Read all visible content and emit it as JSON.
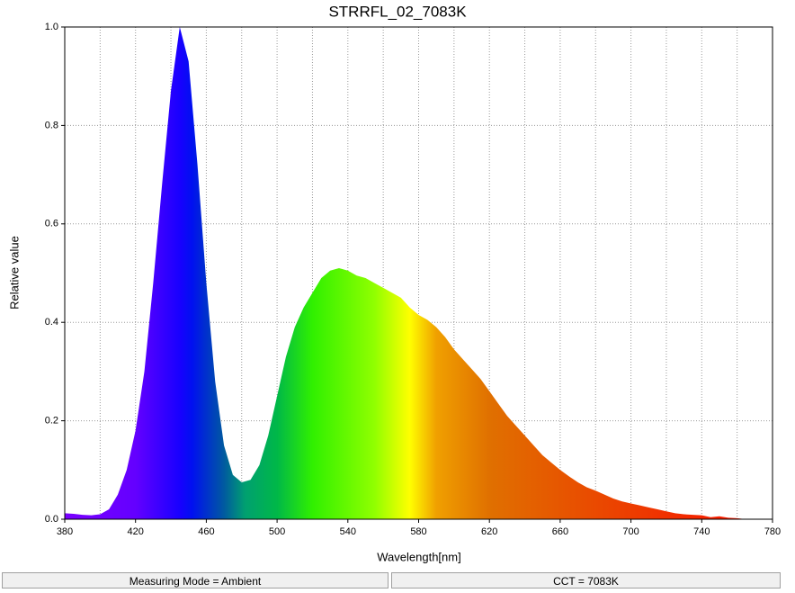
{
  "chart_data": {
    "type": "area",
    "title": "STRRFL_02_7083K",
    "x_label": "Wavelength[nm]",
    "y_label": "Relative value",
    "x": [
      380,
      385,
      390,
      395,
      400,
      405,
      410,
      415,
      420,
      425,
      430,
      435,
      440,
      445,
      450,
      455,
      460,
      465,
      470,
      475,
      480,
      485,
      490,
      495,
      500,
      505,
      510,
      515,
      520,
      525,
      530,
      535,
      540,
      545,
      550,
      555,
      560,
      565,
      570,
      575,
      580,
      585,
      590,
      595,
      600,
      605,
      610,
      615,
      620,
      625,
      630,
      635,
      640,
      645,
      650,
      655,
      660,
      665,
      670,
      675,
      680,
      685,
      690,
      695,
      700,
      705,
      710,
      715,
      720,
      725,
      730,
      735,
      740,
      745,
      750,
      755,
      760,
      765
    ],
    "values": [
      0.012,
      0.011,
      0.009,
      0.008,
      0.01,
      0.02,
      0.05,
      0.1,
      0.18,
      0.3,
      0.48,
      0.68,
      0.87,
      1.0,
      0.93,
      0.72,
      0.48,
      0.28,
      0.15,
      0.09,
      0.075,
      0.08,
      0.11,
      0.17,
      0.25,
      0.33,
      0.39,
      0.43,
      0.46,
      0.49,
      0.505,
      0.51,
      0.505,
      0.495,
      0.49,
      0.48,
      0.47,
      0.46,
      0.45,
      0.43,
      0.415,
      0.405,
      0.39,
      0.37,
      0.345,
      0.325,
      0.305,
      0.285,
      0.26,
      0.235,
      0.21,
      0.19,
      0.17,
      0.15,
      0.13,
      0.115,
      0.1,
      0.087,
      0.075,
      0.065,
      0.058,
      0.05,
      0.042,
      0.036,
      0.032,
      0.028,
      0.024,
      0.02,
      0.016,
      0.012,
      0.01,
      0.009,
      0.008,
      0.004,
      0.006,
      0.003,
      0.002,
      0
    ],
    "fill_gradient": [
      {
        "x": 380,
        "color": "#7a00ff"
      },
      {
        "x": 420,
        "color": "#6400ff"
      },
      {
        "x": 445,
        "color": "#1800ff"
      },
      {
        "x": 452,
        "color": "#0010f0"
      },
      {
        "x": 470,
        "color": "#005aa0"
      },
      {
        "x": 482,
        "color": "#00a070"
      },
      {
        "x": 500,
        "color": "#00b848"
      },
      {
        "x": 520,
        "color": "#30f000"
      },
      {
        "x": 555,
        "color": "#90ff00"
      },
      {
        "x": 575,
        "color": "#ffff00"
      },
      {
        "x": 590,
        "color": "#f0a000"
      },
      {
        "x": 620,
        "color": "#e07000"
      },
      {
        "x": 670,
        "color": "#e85000"
      },
      {
        "x": 720,
        "color": "#f03000"
      },
      {
        "x": 780,
        "color": "#ff1000"
      }
    ],
    "xlim": [
      380,
      780
    ],
    "ylim": [
      0,
      1
    ],
    "xticks": [
      380,
      420,
      460,
      500,
      540,
      580,
      620,
      660,
      700,
      740,
      780
    ],
    "x_minor_ticks": [
      400,
      440,
      480,
      520,
      560,
      600,
      640,
      680,
      720,
      760
    ],
    "yticks": [
      {
        "value": 0,
        "label": "0.0"
      },
      0.2,
      0.4,
      0.6,
      0.8,
      {
        "value": 1,
        "label": "1.0"
      }
    ],
    "grid": true
  },
  "status_bar": [
    "Measuring Mode = Ambient",
    "CCT = 7083K"
  ]
}
